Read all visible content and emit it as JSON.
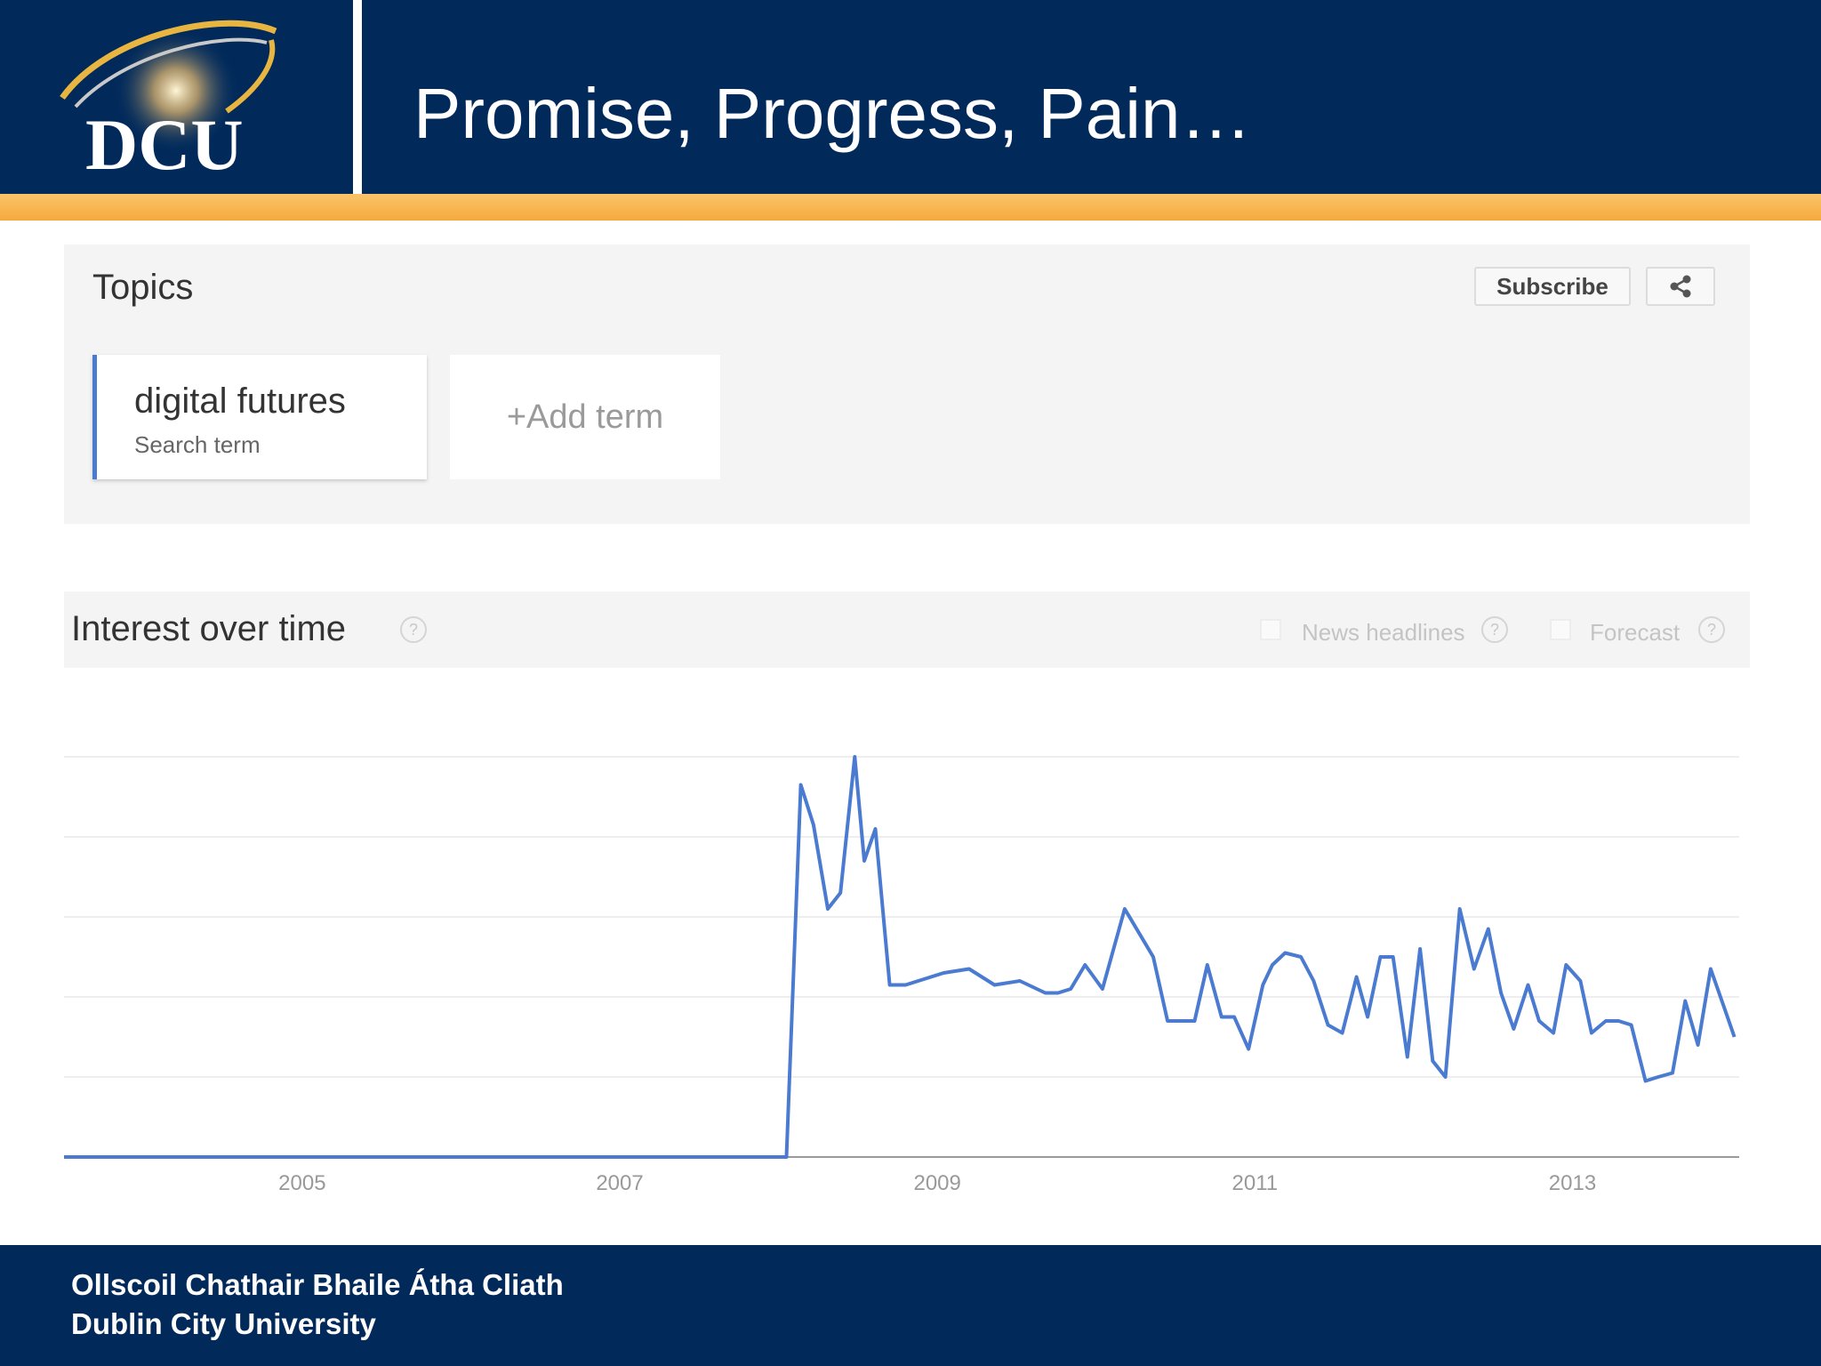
{
  "header": {
    "logo_text": "DCU",
    "title": "Promise, Progress, Pain…"
  },
  "topics": {
    "title": "Topics",
    "subscribe_label": "Subscribe",
    "share_icon": "share-icon",
    "term": {
      "name": "digital futures",
      "type": "Search term"
    },
    "add_term_label": "+Add term"
  },
  "interest": {
    "title": "Interest over time",
    "options": [
      {
        "label": "News headlines",
        "checked": false
      },
      {
        "label": "Forecast",
        "checked": false
      }
    ]
  },
  "chart_data": {
    "type": "line",
    "title": "",
    "xlabel": "",
    "ylabel": "",
    "x_tick_labels": [
      "2005",
      "2007",
      "2009",
      "2011",
      "2013"
    ],
    "ylim": [
      0,
      100
    ],
    "grid": true,
    "line_color": "#4a7bd0",
    "series": [
      {
        "x": [
          2004.0,
          2008.55,
          2008.64,
          2008.72,
          2008.81,
          2008.89,
          2008.98,
          2009.04,
          2009.11,
          2009.2,
          2009.23,
          2009.3,
          2009.54,
          2009.7,
          2009.86,
          2010.02,
          2010.18,
          2010.26,
          2010.34,
          2010.43,
          2010.54,
          2010.68,
          2010.86,
          2010.95,
          2011.04,
          2011.12,
          2011.2,
          2011.29,
          2011.37,
          2011.46,
          2011.55,
          2011.61,
          2011.69,
          2011.79,
          2011.87,
          2011.96,
          2012.05,
          2012.14,
          2012.21,
          2012.29,
          2012.37,
          2012.46,
          2012.54,
          2012.62,
          2012.7,
          2012.79,
          2012.88,
          2012.97,
          2013.05,
          2013.13,
          2013.22,
          2013.29,
          2013.38,
          2013.46,
          2013.55,
          2013.62,
          2013.71,
          2013.79,
          2013.87,
          2013.96,
          2014.04,
          2014.13,
          2014.21,
          2014.29,
          2014.37,
          2014.45,
          2014.52
        ],
        "y": [
          0,
          0,
          93,
          83,
          62,
          66,
          100,
          74,
          82,
          43,
          43,
          43,
          46,
          47,
          43,
          44,
          41,
          41,
          42,
          48,
          42,
          62,
          50,
          34,
          34,
          34,
          48,
          35,
          35,
          27,
          43,
          48,
          51,
          50,
          44,
          33,
          31,
          45,
          35,
          50,
          50,
          25,
          52,
          24,
          20,
          62,
          47,
          57,
          41,
          32,
          43,
          34,
          31,
          48,
          44,
          31,
          34,
          34,
          33,
          19,
          20,
          21,
          39,
          28,
          47,
          38,
          30
        ]
      }
    ]
  },
  "footer": {
    "line1": "Ollscoil Chathair Bhaile Átha Cliath",
    "line2": "Dublin City University"
  }
}
